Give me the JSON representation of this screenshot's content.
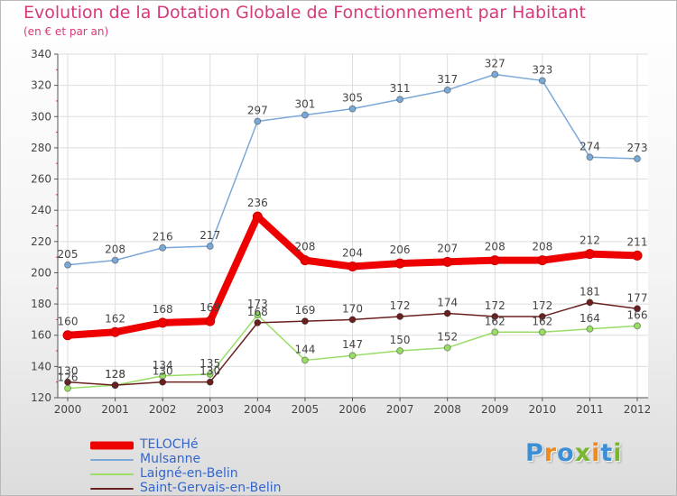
{
  "logo": {
    "text": "Proxiti",
    "colors": [
      "#3b8fd6",
      "#f08a1c",
      "#3b8fd6",
      "#7ab632",
      "#f08a1c",
      "#3b8fd6",
      "#7ab632"
    ]
  },
  "chart_data": {
    "type": "line",
    "title": "Evolution de la Dotation Globale de Fonctionnement par Habitant",
    "subtitle": "(en € et par an)",
    "xlabel": "",
    "ylabel": "",
    "x": [
      "2000",
      "2001",
      "2002",
      "2003",
      "2004",
      "2005",
      "2006",
      "2007",
      "2008",
      "2009",
      "2010",
      "2011",
      "2012"
    ],
    "ylim": [
      120,
      340
    ],
    "yticks": [
      120,
      140,
      160,
      180,
      200,
      220,
      240,
      260,
      280,
      300,
      320,
      340
    ],
    "grid": true,
    "legend_position": "bottom-left",
    "series": [
      {
        "name": "TELOCHé",
        "color": "#ee0000",
        "values": [
          160,
          162,
          168,
          169,
          236,
          208,
          204,
          206,
          207,
          208,
          208,
          212,
          211
        ]
      },
      {
        "name": "Mulsanne",
        "color": "#7aa9d8",
        "values": [
          205,
          208,
          216,
          217,
          297,
          301,
          305,
          311,
          317,
          327,
          323,
          274,
          273
        ]
      },
      {
        "name": "Laigné-en-Belin",
        "color": "#99dd66",
        "values": [
          126,
          128,
          134,
          135,
          173,
          144,
          147,
          150,
          152,
          162,
          162,
          164,
          166
        ]
      },
      {
        "name": "Saint-Gervais-en-Belin",
        "color": "#6b2020",
        "values": [
          130,
          128,
          130,
          130,
          168,
          169,
          170,
          172,
          174,
          172,
          172,
          181,
          177
        ]
      }
    ]
  }
}
